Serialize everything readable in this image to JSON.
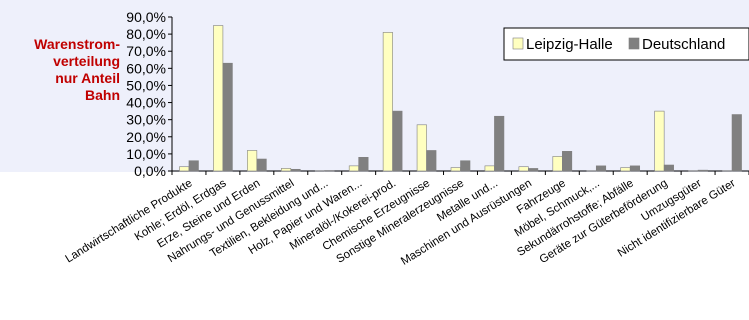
{
  "side_label": "Warenstrom-\nverteilung\nnur Anteil\nBahn",
  "chart_data": {
    "type": "bar",
    "title": "",
    "xlabel": "",
    "ylabel": "",
    "ylim": [
      0,
      90
    ],
    "yticks": [
      "0,0%",
      "10,0%",
      "20,0%",
      "30,0%",
      "40,0%",
      "50,0%",
      "60,0%",
      "70,0%",
      "80,0%",
      "90,0%"
    ],
    "grid": false,
    "legend_position": "top-right",
    "categories": [
      "Landwirtschaftliche Produkte",
      "Kohle; Erdöl, Erdgas",
      "Erze, Steine und Erden",
      "Nahrungs- und Genussmittel",
      "Textilien, Bekleidung und...",
      "Holz, Papier und Waren...",
      "Mineralöl-/Kokerei-prod.",
      "Chemische Erzeugnisse",
      "Sonstige Mineralerzeugnisse",
      "Metalle und...",
      "Maschinen und Ausrüstungen",
      "Fahrzeuge",
      "Möbel, Schmuck,...",
      "Sekundärrohstoffe; Abfälle",
      "Geräte zur Güterbeförderung",
      "Umzugsgüter",
      "Nicht identifizierbare Güter"
    ],
    "series": [
      {
        "name": "Leipzig-Halle",
        "color": "#ffffc0",
        "values": [
          2.5,
          85,
          12,
          1.5,
          0.2,
          3,
          81,
          27,
          2,
          3,
          2.5,
          8.5,
          0.2,
          2,
          35,
          0.2,
          0.2
        ]
      },
      {
        "name": "Deutschland",
        "color": "#808080",
        "values": [
          6,
          63,
          7,
          1,
          0.3,
          8,
          35,
          12,
          6,
          32,
          1.5,
          11.5,
          3,
          3,
          3.5,
          0.5,
          33
        ]
      }
    ]
  }
}
